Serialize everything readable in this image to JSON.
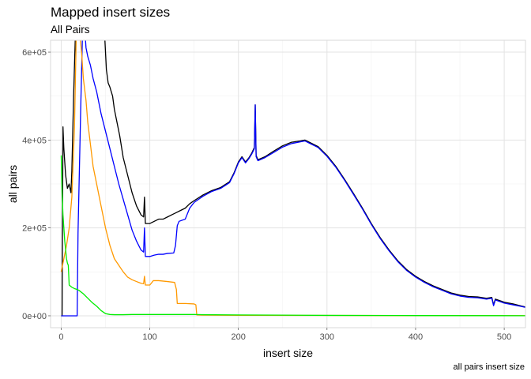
{
  "chart_data": {
    "type": "line",
    "title": "Mapped insert sizes",
    "subtitle": "All Pairs",
    "caption": "all pairs insert size",
    "xlabel": "insert size",
    "ylabel": "all pairs",
    "xlim": [
      -12,
      524
    ],
    "ylim": [
      -27000,
      627000
    ],
    "x_ticks": [
      0,
      100,
      200,
      300,
      400,
      500
    ],
    "x_tick_labels": [
      "0",
      "100",
      "200",
      "300",
      "400",
      "500"
    ],
    "y_ticks": [
      0,
      200000,
      400000,
      600000
    ],
    "y_tick_labels": [
      "0e+00",
      "2e+05",
      "4e+05",
      "6e+05"
    ],
    "grid": true,
    "series": [
      {
        "color": "#000000",
        "points": [
          [
            0,
            0
          ],
          [
            1,
            0
          ],
          [
            2,
            430000
          ],
          [
            3,
            380000
          ],
          [
            5,
            320000
          ],
          [
            7,
            290000
          ],
          [
            9,
            300000
          ],
          [
            11,
            280000
          ],
          [
            12,
            330000
          ],
          [
            14,
            500000
          ],
          [
            16,
            640000
          ],
          [
            20,
            640000
          ],
          [
            40,
            640000
          ],
          [
            49,
            640000
          ],
          [
            51,
            560000
          ],
          [
            53,
            530000
          ],
          [
            55,
            520000
          ],
          [
            58,
            500000
          ],
          [
            60,
            470000
          ],
          [
            63,
            440000
          ],
          [
            66,
            410000
          ],
          [
            70,
            360000
          ],
          [
            75,
            320000
          ],
          [
            80,
            280000
          ],
          [
            85,
            250000
          ],
          [
            90,
            230000
          ],
          [
            93,
            225000
          ],
          [
            94,
            270000
          ],
          [
            95,
            210000
          ],
          [
            100,
            210000
          ],
          [
            105,
            215000
          ],
          [
            110,
            220000
          ],
          [
            115,
            220000
          ],
          [
            120,
            225000
          ],
          [
            125,
            230000
          ],
          [
            130,
            235000
          ],
          [
            135,
            240000
          ],
          [
            140,
            245000
          ],
          [
            145,
            255000
          ],
          [
            150,
            262000
          ],
          [
            160,
            275000
          ],
          [
            170,
            285000
          ],
          [
            180,
            292000
          ],
          [
            190,
            305000
          ],
          [
            195,
            325000
          ],
          [
            200,
            350000
          ],
          [
            204,
            362000
          ],
          [
            208,
            350000
          ],
          [
            212,
            360000
          ],
          [
            215,
            370000
          ],
          [
            218,
            383000
          ],
          [
            219,
            480000
          ],
          [
            220,
            365000
          ],
          [
            222,
            355000
          ],
          [
            230,
            362000
          ],
          [
            240,
            375000
          ],
          [
            250,
            387000
          ],
          [
            260,
            395000
          ],
          [
            270,
            398000
          ],
          [
            275,
            400000
          ],
          [
            280,
            395000
          ],
          [
            290,
            385000
          ],
          [
            300,
            365000
          ],
          [
            310,
            340000
          ],
          [
            320,
            310000
          ],
          [
            330,
            278000
          ],
          [
            340,
            245000
          ],
          [
            350,
            210000
          ],
          [
            360,
            178000
          ],
          [
            370,
            150000
          ],
          [
            380,
            125000
          ],
          [
            390,
            105000
          ],
          [
            400,
            90000
          ],
          [
            410,
            78000
          ],
          [
            420,
            68000
          ],
          [
            430,
            60000
          ],
          [
            440,
            52000
          ],
          [
            450,
            47000
          ],
          [
            460,
            44000
          ],
          [
            470,
            43000
          ],
          [
            480,
            40000
          ],
          [
            486,
            42000
          ],
          [
            488,
            25000
          ],
          [
            490,
            38000
          ],
          [
            500,
            31000
          ],
          [
            510,
            27000
          ],
          [
            520,
            22000
          ],
          [
            524,
            20000
          ]
        ]
      },
      {
        "color": "#0000ff",
        "points": [
          [
            0,
            0
          ],
          [
            17,
            0
          ],
          [
            18,
            0
          ],
          [
            19,
            190000
          ],
          [
            22,
            470000
          ],
          [
            24,
            640000
          ],
          [
            27,
            640000
          ],
          [
            28,
            610000
          ],
          [
            30,
            590000
          ],
          [
            33,
            570000
          ],
          [
            36,
            540000
          ],
          [
            40,
            510000
          ],
          [
            45,
            460000
          ],
          [
            50,
            420000
          ],
          [
            55,
            380000
          ],
          [
            60,
            340000
          ],
          [
            65,
            300000
          ],
          [
            70,
            265000
          ],
          [
            75,
            230000
          ],
          [
            80,
            195000
          ],
          [
            85,
            170000
          ],
          [
            90,
            150000
          ],
          [
            93,
            145000
          ],
          [
            94,
            200000
          ],
          [
            95,
            135000
          ],
          [
            100,
            135000
          ],
          [
            105,
            138000
          ],
          [
            110,
            140000
          ],
          [
            115,
            140000
          ],
          [
            120,
            142000
          ],
          [
            127,
            143000
          ],
          [
            129,
            160000
          ],
          [
            131,
            205000
          ],
          [
            133,
            215000
          ],
          [
            140,
            220000
          ],
          [
            145,
            245000
          ],
          [
            150,
            258000
          ],
          [
            160,
            272000
          ],
          [
            170,
            283000
          ],
          [
            180,
            290000
          ],
          [
            190,
            303000
          ],
          [
            195,
            323000
          ],
          [
            200,
            348000
          ],
          [
            204,
            360000
          ],
          [
            208,
            348000
          ],
          [
            212,
            358000
          ],
          [
            215,
            368000
          ],
          [
            218,
            380000
          ],
          [
            219,
            480000
          ],
          [
            220,
            362000
          ],
          [
            222,
            353000
          ],
          [
            230,
            360000
          ],
          [
            240,
            372000
          ],
          [
            250,
            384000
          ],
          [
            260,
            392000
          ],
          [
            270,
            396000
          ],
          [
            275,
            398000
          ],
          [
            280,
            393000
          ],
          [
            290,
            383000
          ],
          [
            300,
            363000
          ],
          [
            310,
            338000
          ],
          [
            320,
            308000
          ],
          [
            330,
            276000
          ],
          [
            340,
            243000
          ],
          [
            350,
            208000
          ],
          [
            360,
            176000
          ],
          [
            370,
            148000
          ],
          [
            380,
            123000
          ],
          [
            390,
            103000
          ],
          [
            400,
            88000
          ],
          [
            410,
            76000
          ],
          [
            420,
            66000
          ],
          [
            430,
            58000
          ],
          [
            440,
            50000
          ],
          [
            450,
            45000
          ],
          [
            460,
            42000
          ],
          [
            470,
            41000
          ],
          [
            480,
            38000
          ],
          [
            486,
            40000
          ],
          [
            488,
            23000
          ],
          [
            490,
            36000
          ],
          [
            500,
            29000
          ],
          [
            510,
            25000
          ],
          [
            520,
            21000
          ],
          [
            524,
            19000
          ]
        ]
      },
      {
        "color": "#ff9900",
        "points": [
          [
            0,
            100000
          ],
          [
            3,
            130000
          ],
          [
            6,
            160000
          ],
          [
            9,
            200000
          ],
          [
            12,
            270000
          ],
          [
            15,
            430000
          ],
          [
            17,
            640000
          ],
          [
            19,
            640000
          ],
          [
            21,
            640000
          ],
          [
            23,
            600000
          ],
          [
            25,
            540000
          ],
          [
            28,
            490000
          ],
          [
            30,
            440000
          ],
          [
            33,
            390000
          ],
          [
            36,
            340000
          ],
          [
            40,
            300000
          ],
          [
            45,
            250000
          ],
          [
            50,
            200000
          ],
          [
            55,
            160000
          ],
          [
            60,
            130000
          ],
          [
            65,
            115000
          ],
          [
            70,
            100000
          ],
          [
            75,
            88000
          ],
          [
            80,
            82000
          ],
          [
            85,
            78000
          ],
          [
            90,
            74000
          ],
          [
            93,
            73000
          ],
          [
            94,
            90000
          ],
          [
            95,
            70000
          ],
          [
            100,
            70000
          ],
          [
            104,
            80000
          ],
          [
            110,
            80000
          ],
          [
            120,
            78000
          ],
          [
            128,
            76000
          ],
          [
            130,
            60000
          ],
          [
            131,
            28000
          ],
          [
            140,
            28000
          ],
          [
            150,
            27000
          ],
          [
            152,
            25000
          ],
          [
            153,
            2000
          ],
          [
            160,
            1500
          ],
          [
            200,
            1200
          ],
          [
            300,
            800
          ],
          [
            400,
            500
          ],
          [
            524,
            300
          ]
        ]
      },
      {
        "color": "#00ee00",
        "points": [
          [
            0,
            365000
          ],
          [
            1,
            280000
          ],
          [
            2,
            230000
          ],
          [
            3,
            200000
          ],
          [
            4,
            170000
          ],
          [
            5,
            150000
          ],
          [
            6,
            130000
          ],
          [
            7,
            120000
          ],
          [
            8,
            115000
          ],
          [
            9,
            70000
          ],
          [
            12,
            65000
          ],
          [
            15,
            62000
          ],
          [
            18,
            60000
          ],
          [
            20,
            58000
          ],
          [
            25,
            50000
          ],
          [
            30,
            40000
          ],
          [
            35,
            30000
          ],
          [
            40,
            22000
          ],
          [
            45,
            12000
          ],
          [
            50,
            5000
          ],
          [
            55,
            3000
          ],
          [
            60,
            2500
          ],
          [
            70,
            2500
          ],
          [
            80,
            3000
          ],
          [
            90,
            3000
          ],
          [
            100,
            3000
          ],
          [
            120,
            3000
          ],
          [
            140,
            3000
          ],
          [
            150,
            3000
          ],
          [
            160,
            2500
          ],
          [
            200,
            2000
          ],
          [
            250,
            1500
          ],
          [
            300,
            1000
          ],
          [
            400,
            500
          ],
          [
            524,
            200
          ]
        ]
      }
    ]
  }
}
